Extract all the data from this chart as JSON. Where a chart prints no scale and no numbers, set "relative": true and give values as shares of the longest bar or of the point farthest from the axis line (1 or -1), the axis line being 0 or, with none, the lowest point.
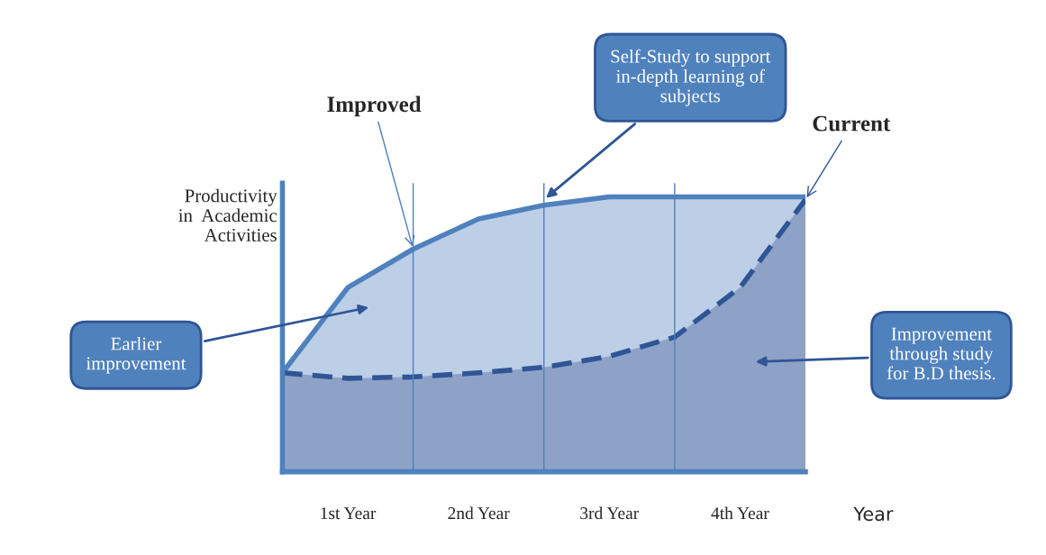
{
  "chart_data": {
    "type": "area",
    "relative": true,
    "xlabel": "Year",
    "ylabel": "Productivity\nin  Academic\nActivities",
    "categories": [
      null,
      "1st Year",
      null,
      "2nd Year",
      null,
      "3rd Year",
      null,
      "4th Year",
      null
    ],
    "series": [
      {
        "name": "Improved",
        "color": "#4f81bd",
        "line_style": "solid",
        "values": [
          0.36,
          0.67,
          0.81,
          0.92,
          0.97,
          1.0,
          1.0,
          1.0,
          1.0
        ]
      },
      {
        "name": "Current",
        "color": "#2f5597",
        "line_style": "dashed",
        "values": [
          0.36,
          0.34,
          0.345,
          0.36,
          0.38,
          0.42,
          0.49,
          0.67,
          0.99
        ]
      }
    ],
    "annotations": [
      "Self-Study to support\nin-depth learning of\nsubjects",
      "Earlier\nimprovement",
      "Improvement\nthrough study\nfor B.D thesis."
    ],
    "grid": "x",
    "legend": false
  }
}
